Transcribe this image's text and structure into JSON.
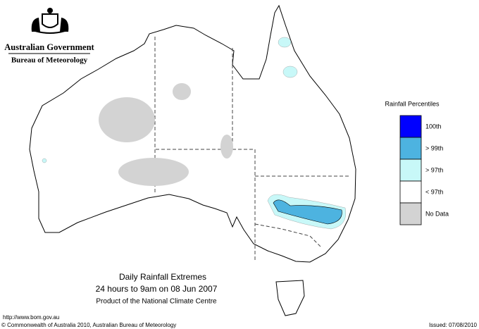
{
  "header": {
    "government": "Australian Government",
    "bureau": "Bureau of Meteorology"
  },
  "legend": {
    "title": "Rainfall Percentiles",
    "items": [
      {
        "label": "100th",
        "color": "#0000ff"
      },
      {
        "label": "> 99th",
        "color": "#4db3e0"
      },
      {
        "label": "> 97th",
        "color": "#c8f8f8"
      },
      {
        "label": "< 97th",
        "color": "#ffffff"
      },
      {
        "label": "No Data",
        "color": "#d3d3d3"
      }
    ]
  },
  "caption": {
    "title": "Daily Rainfall Extremes",
    "subtitle": "24 hours to 9am on 08 Jun 2007",
    "credit": "Product of the National Climate Centre"
  },
  "footer": {
    "url": "http://www.bom.gov.au",
    "copyright": "© Commonwealth of Australia 2010, Australian Bureau of Meteorology",
    "issued": "Issued: 07/08/2010"
  }
}
